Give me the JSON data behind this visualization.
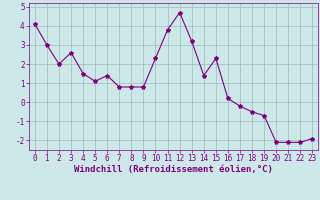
{
  "x": [
    0,
    1,
    2,
    3,
    4,
    5,
    6,
    7,
    8,
    9,
    10,
    11,
    12,
    13,
    14,
    15,
    16,
    17,
    18,
    19,
    20,
    21,
    22,
    23
  ],
  "y": [
    4.1,
    3.0,
    2.0,
    2.6,
    1.5,
    1.1,
    1.4,
    0.8,
    0.8,
    0.8,
    2.3,
    3.8,
    4.7,
    3.2,
    1.4,
    2.3,
    0.2,
    -0.2,
    -0.5,
    -0.7,
    -2.1,
    -2.1,
    -2.1,
    -1.9
  ],
  "line_color": "#800080",
  "marker": "*",
  "markersize": 3,
  "linewidth": 0.8,
  "xlabel": "Windchill (Refroidissement éolien,°C)",
  "xlabel_fontsize": 6.5,
  "xlim": [
    -0.5,
    23.5
  ],
  "ylim": [
    -2.5,
    5.2
  ],
  "yticks": [
    -2,
    -1,
    0,
    1,
    2,
    3,
    4,
    5
  ],
  "xticks": [
    0,
    1,
    2,
    3,
    4,
    5,
    6,
    7,
    8,
    9,
    10,
    11,
    12,
    13,
    14,
    15,
    16,
    17,
    18,
    19,
    20,
    21,
    22,
    23
  ],
  "grid_color": "#a0baba",
  "bg_color": "#cce8e8",
  "tick_fontsize": 5.5,
  "fig_bg": "#cce8e8"
}
